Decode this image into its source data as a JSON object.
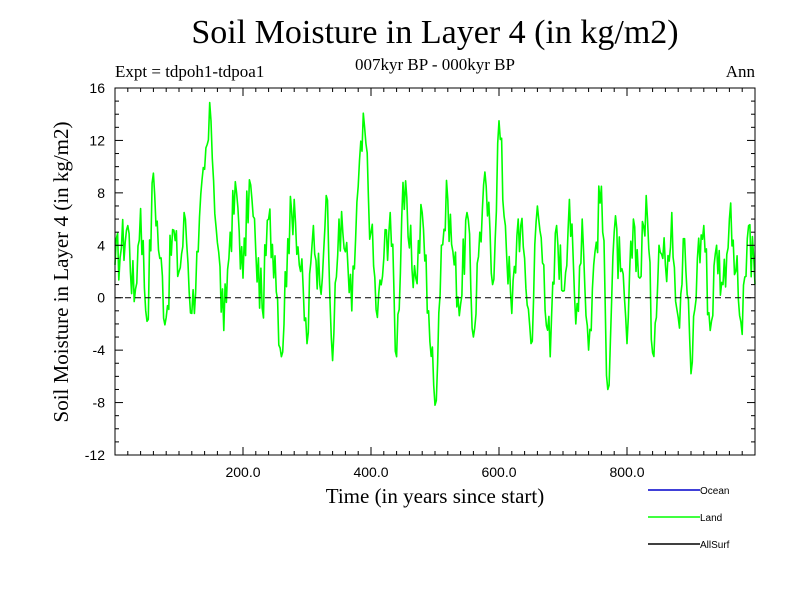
{
  "chart_data": {
    "type": "line",
    "title": "Soil Moisture in Layer 4 (in kg/m2)",
    "subtitle": "007kyr BP - 000kyr BP",
    "experiment": "Expt = tdpoh1-tdpoa1",
    "period": "Ann",
    "xlabel": "Time (in years since start)",
    "ylabel": "Soil Moisture in Layer 4 (in kg/m2)",
    "xlim": [
      0,
      1000
    ],
    "ylim": [
      -12,
      16
    ],
    "x_ticks": [
      200,
      400,
      600,
      800
    ],
    "x_tick_labels": [
      "200.0",
      "400.0",
      "600.0",
      "800.0"
    ],
    "y_ticks": [
      -12,
      -8,
      -4,
      0,
      4,
      8,
      12,
      16
    ],
    "y_tick_labels": [
      "-12",
      "-8",
      "-4",
      "0",
      "4",
      "8",
      "12",
      "16"
    ],
    "zero_line": true,
    "legend": [
      {
        "name": "Ocean",
        "color": "#0000cc"
      },
      {
        "name": "Land",
        "color": "#00ff00"
      },
      {
        "name": "AllSurf",
        "color": "#000000"
      }
    ],
    "series": [
      {
        "name": "Land",
        "color": "#00ff00",
        "x": [
          0,
          10,
          20,
          30,
          40,
          50,
          60,
          70,
          80,
          90,
          100,
          110,
          120,
          130,
          140,
          150,
          160,
          170,
          180,
          190,
          200,
          210,
          220,
          230,
          240,
          250,
          260,
          270,
          280,
          290,
          300,
          310,
          320,
          330,
          340,
          350,
          360,
          370,
          380,
          390,
          400,
          410,
          420,
          430,
          440,
          450,
          460,
          470,
          480,
          490,
          500,
          510,
          520,
          530,
          540,
          550,
          560,
          570,
          580,
          590,
          600,
          610,
          620,
          630,
          640,
          650,
          660,
          670,
          680,
          690,
          700,
          710,
          720,
          730,
          740,
          750,
          760,
          770,
          780,
          790,
          800,
          810,
          820,
          830,
          840,
          850,
          860,
          870,
          880,
          890,
          900,
          910,
          920,
          930,
          940,
          950,
          960,
          970,
          980,
          990,
          1000
        ],
        "values": [
          2.5,
          3.8,
          5.5,
          -0.3,
          6.8,
          -1.8,
          9.5,
          3.0,
          -1.5,
          5.2,
          2.0,
          6.0,
          -1.2,
          3.5,
          9.8,
          13.5,
          4.2,
          -2.5,
          5.0,
          8.0,
          1.5,
          9.0,
          3.5,
          -0.8,
          6.0,
          3.2,
          -4.5,
          4.5,
          7.5,
          2.0,
          -3.5,
          5.5,
          1.0,
          7.8,
          -4.8,
          6.0,
          3.5,
          -1.0,
          8.5,
          13.0,
          5.0,
          -1.5,
          3.0,
          6.5,
          -4.5,
          8.8,
          3.8,
          1.5,
          6.5,
          -1.0,
          -8.2,
          4.0,
          7.5,
          2.5,
          -0.5,
          6.5,
          -3.0,
          5.0,
          8.5,
          1.0,
          13.5,
          5.5,
          -1.2,
          6.0,
          3.0,
          -3.5,
          7.0,
          2.5,
          -4.5,
          5.5,
          0.5,
          7.5,
          -2.0,
          6.0,
          -4.0,
          3.5,
          8.5,
          -7.0,
          5.0,
          2.0,
          -3.5,
          6.0,
          1.5,
          7.8,
          -4.2,
          4.0,
          2.5,
          6.5,
          -1.5,
          4.5,
          -5.8,
          3.0,
          5.5,
          -2.5,
          4.0,
          1.0,
          6.0,
          2.0,
          -2.8,
          5.5,
          1.0
        ]
      }
    ]
  }
}
